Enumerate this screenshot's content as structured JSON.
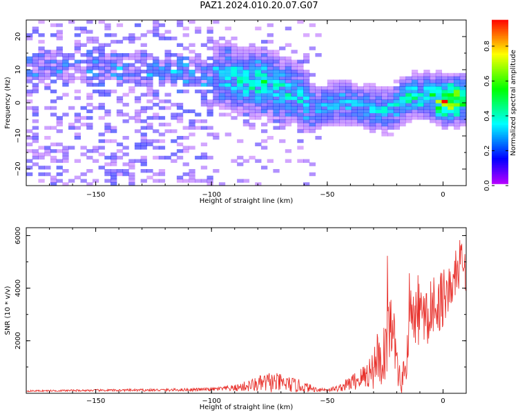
{
  "figure": {
    "title": "PAZ1.2024.010.20.07.G07"
  },
  "chart_data": [
    {
      "type": "heatmap",
      "xlabel": "Height of straight line (km)",
      "ylabel": "Frequency (Hz)",
      "xlim": [
        -180,
        10
      ],
      "ylim": [
        -25,
        25
      ],
      "x_ticks": [
        -150,
        -100,
        -50,
        0
      ],
      "y_ticks": [
        -20,
        -10,
        0,
        10,
        20
      ],
      "colorbar": {
        "label": "Normalized spectral amplitude",
        "range": [
          0.0,
          0.95
        ],
        "ticks": [
          0.0,
          0.2,
          0.4,
          0.6,
          0.8
        ],
        "colormap": "gist_rainbow",
        "zero_color": "#ffffff"
      },
      "ridge": {
        "x": [
          -180,
          -150,
          -130,
          -110,
          -95,
          -85,
          -75,
          -65,
          -55,
          -45,
          -35,
          -25,
          -15,
          -5,
          0,
          10
        ],
        "frequency": [
          10,
          10,
          9,
          8,
          7,
          6,
          5,
          2,
          -2,
          0,
          -2,
          -3,
          2,
          1,
          0,
          1
        ],
        "amplitude": [
          0.15,
          0.18,
          0.22,
          0.26,
          0.32,
          0.42,
          0.4,
          0.32,
          0.28,
          0.3,
          0.3,
          0.34,
          0.4,
          0.5,
          0.95,
          0.55
        ]
      },
      "grid": false
    },
    {
      "type": "line",
      "xlabel": "Height of straight line (km)",
      "ylabel": "SNR (10 * v/v)",
      "xlim": [
        -180,
        10
      ],
      "ylim": [
        0,
        6300
      ],
      "x_ticks": [
        -150,
        -100,
        -50,
        0
      ],
      "y_ticks": [
        2000,
        4000,
        6000
      ],
      "series": [
        {
          "color": "#e8312c",
          "envelope": {
            "x": [
              -180,
              -150,
              -120,
              -100,
              -90,
              -80,
              -75,
              -70,
              -62,
              -55,
              -50,
              -45,
              -40,
              -35,
              -30,
              -28,
              -26,
              -24,
              -22,
              -20,
              -18,
              -16,
              -14,
              -12,
              -10,
              -8,
              -6,
              -4,
              -2,
              0,
              2,
              4,
              6,
              8,
              10
            ],
            "base": [
              80,
              100,
              110,
              130,
              160,
              250,
              300,
              280,
              200,
              120,
              110,
              150,
              300,
              450,
              700,
              1200,
              900,
              1800,
              2400,
              800,
              200,
              900,
              2600,
              2200,
              2800,
              2600,
              2400,
              3200,
              3000,
              3400,
              3600,
              3500,
              4500,
              4700,
              4400
            ],
            "amp": [
              60,
              80,
              100,
              130,
              250,
              600,
              800,
              700,
              500,
              200,
              150,
              250,
              600,
              900,
              1600,
              2600,
              2400,
              2500,
              2800,
              1500,
              700,
              2000,
              3000,
              2600,
              2500,
              2300,
              2000,
              2200,
              2000,
              2500,
              2300,
              2000,
              1800,
              1700,
              1500
            ]
          }
        }
      ],
      "grid": false
    }
  ]
}
